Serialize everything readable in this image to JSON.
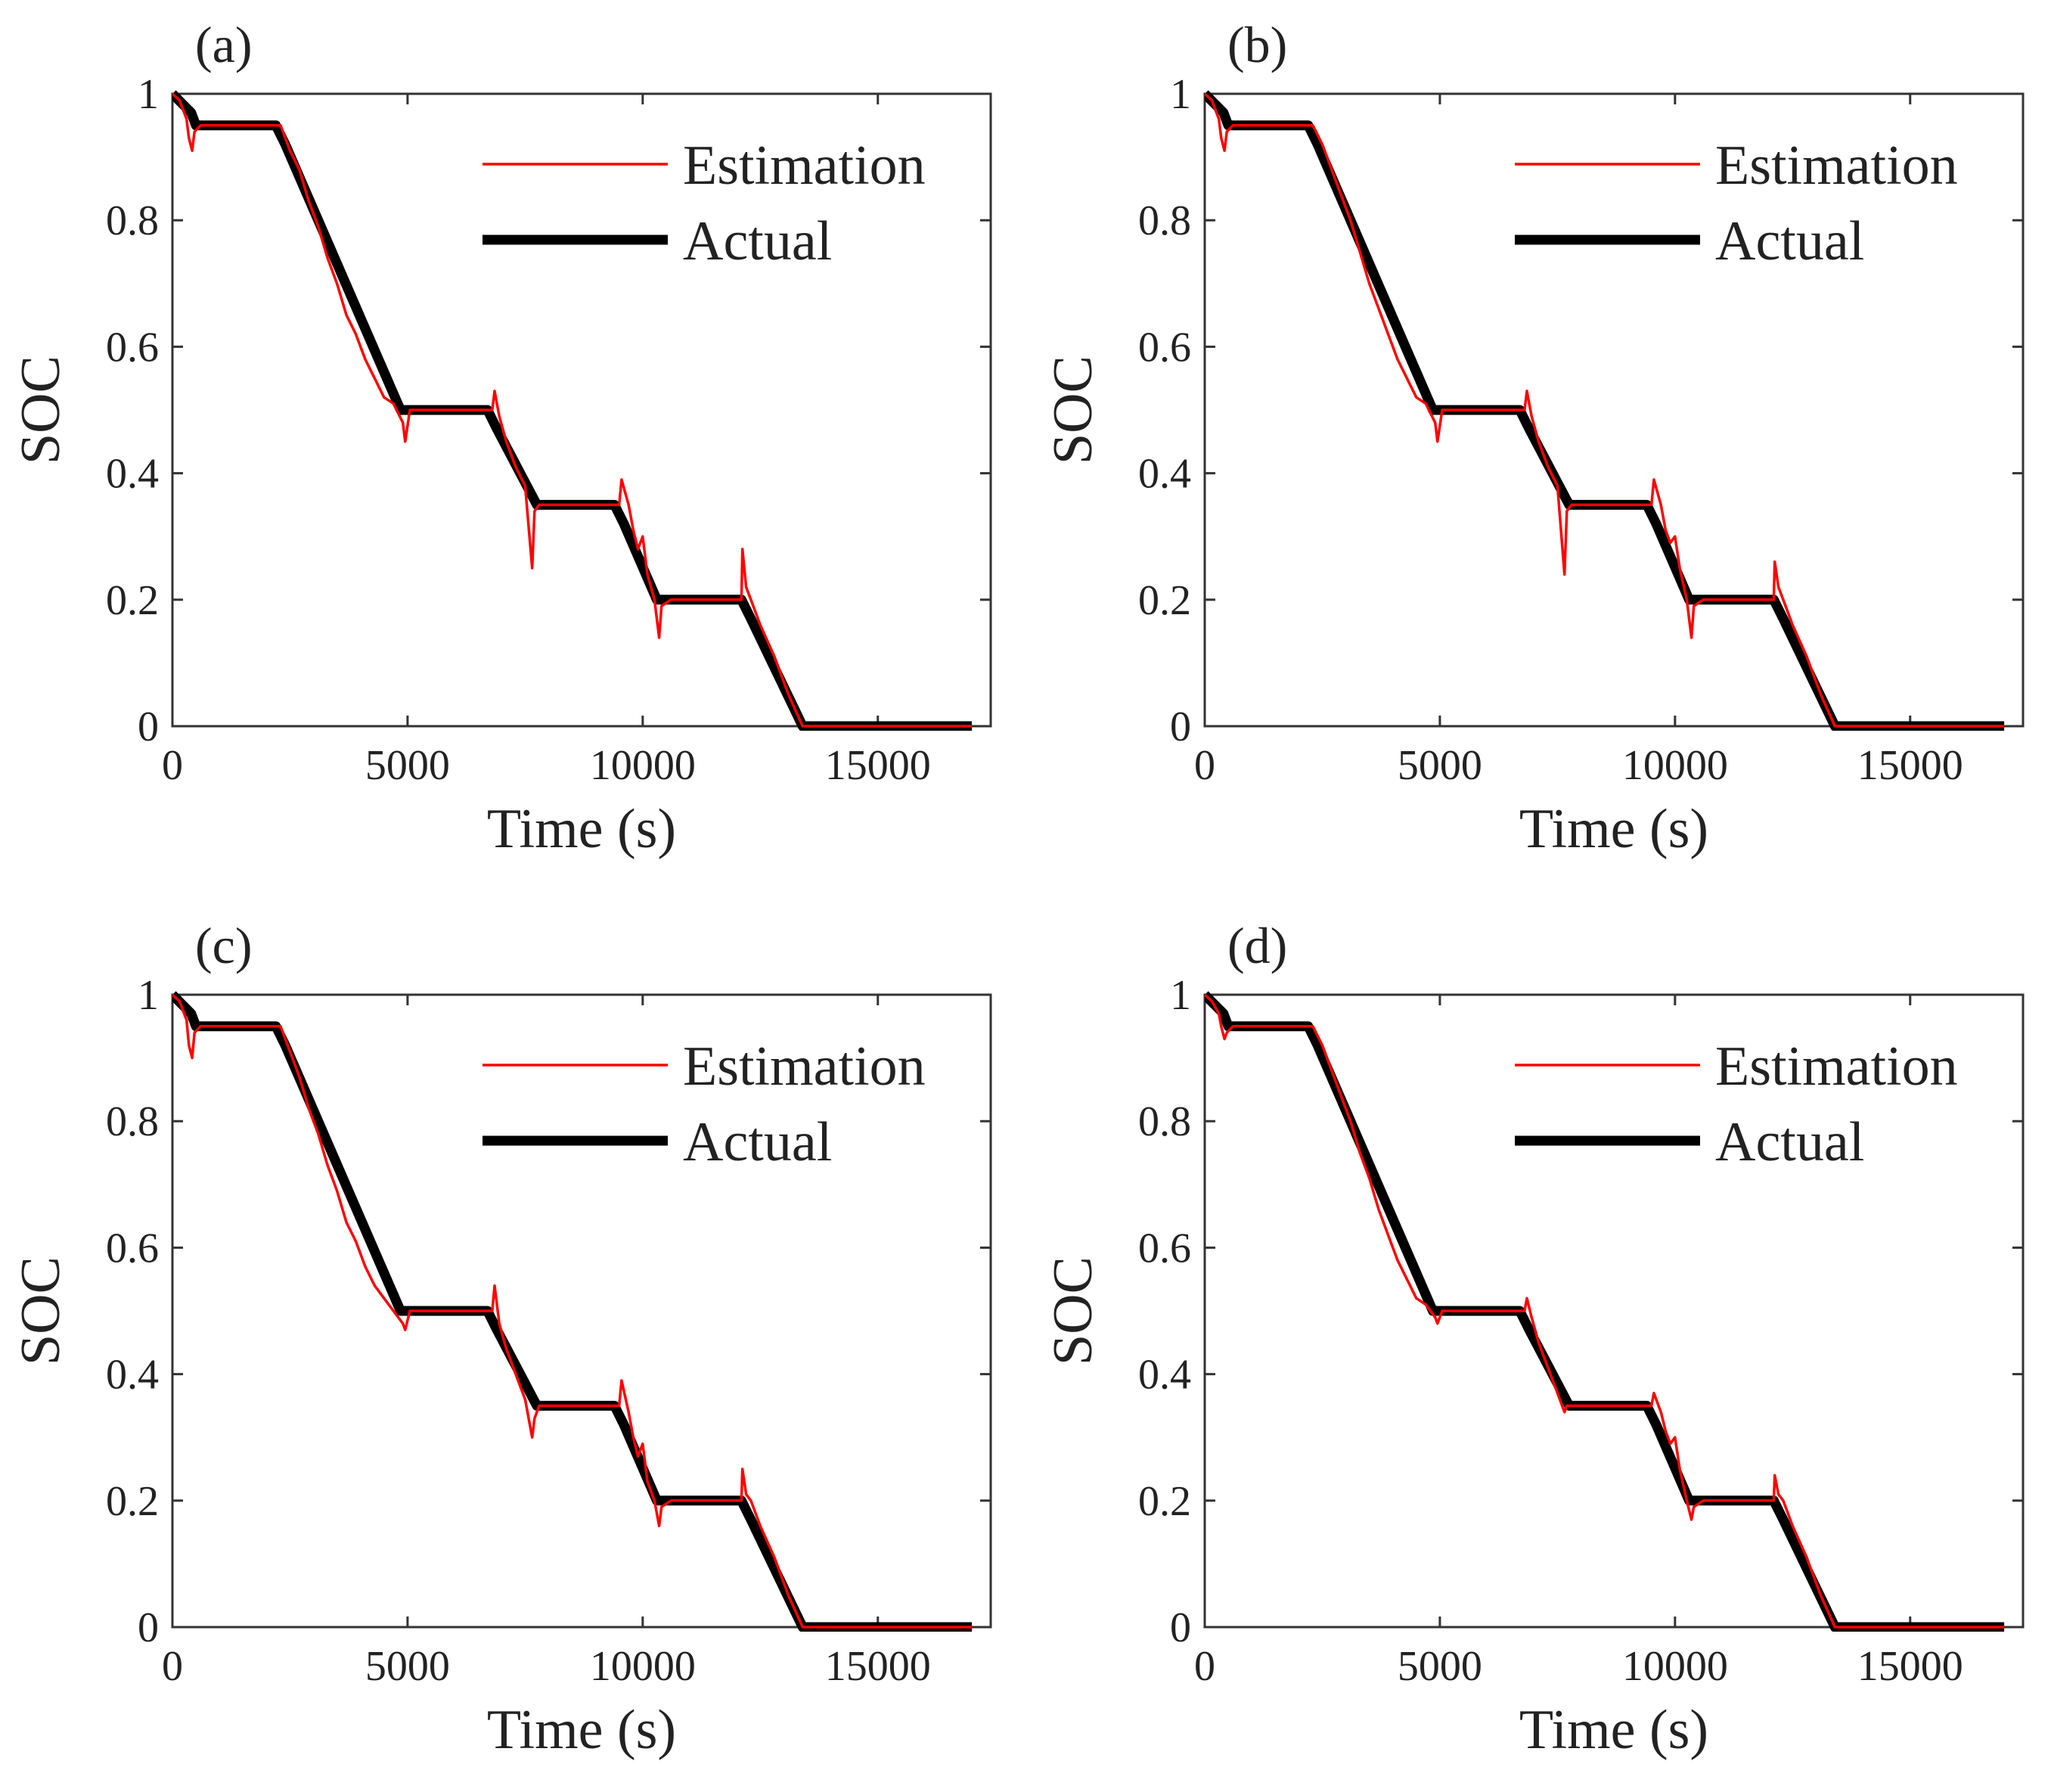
{
  "figure": {
    "panel_order": [
      "a",
      "b",
      "c",
      "d"
    ]
  },
  "colors": {
    "estimation": "#ff0000",
    "actual": "#000000",
    "axes": "#333333"
  },
  "chart_data": [
    {
      "type": "line",
      "panel_label": "(a)",
      "xlabel": "Time (s)",
      "ylabel": "SOC",
      "xlim": [
        0,
        17400
      ],
      "ylim": [
        0,
        1
      ],
      "xticks": [
        0,
        5000,
        10000,
        15000
      ],
      "yticks": [
        0,
        0.2,
        0.4,
        0.6,
        0.8,
        1
      ],
      "xtick_labels": [
        "0",
        "5000",
        "10000",
        "15000"
      ],
      "ytick_labels": [
        "0",
        "0.2",
        "0.4",
        "0.6",
        "0.8",
        "1"
      ],
      "legend_position": "top-right",
      "series": [
        {
          "name": "Estimation",
          "role": "estimation",
          "color": "#ff0000",
          "x": [
            0,
            150,
            300,
            350,
            420,
            470,
            600,
            2300,
            2500,
            2700,
            2900,
            3100,
            3300,
            3500,
            3700,
            3900,
            4100,
            4300,
            4500,
            4700,
            4900,
            4950,
            5050,
            6800,
            6850,
            6950,
            7100,
            7300,
            7500,
            7650,
            7700,
            7800,
            9500,
            9550,
            9700,
            9800,
            9900,
            10000,
            10100,
            10250,
            10350,
            10400,
            10600,
            12100,
            12120,
            12200,
            12300,
            12500,
            12800,
            13100,
            13400,
            17000
          ],
          "y": [
            1.0,
            0.99,
            0.96,
            0.93,
            0.91,
            0.94,
            0.95,
            0.95,
            0.91,
            0.88,
            0.83,
            0.79,
            0.74,
            0.7,
            0.65,
            0.62,
            0.58,
            0.55,
            0.52,
            0.51,
            0.48,
            0.45,
            0.5,
            0.5,
            0.53,
            0.49,
            0.45,
            0.41,
            0.38,
            0.25,
            0.34,
            0.35,
            0.35,
            0.39,
            0.35,
            0.31,
            0.28,
            0.3,
            0.24,
            0.2,
            0.14,
            0.19,
            0.2,
            0.2,
            0.28,
            0.22,
            0.2,
            0.16,
            0.11,
            0.05,
            0.0,
            0.0
          ]
        },
        {
          "name": "Actual",
          "role": "actual",
          "color": "#000000",
          "x": [
            0,
            400,
            500,
            2200,
            2400,
            4850,
            6700,
            6900,
            7750,
            9400,
            9600,
            10300,
            12100,
            12300,
            13400,
            17000
          ],
          "y": [
            1.0,
            0.97,
            0.95,
            0.95,
            0.92,
            0.5,
            0.5,
            0.47,
            0.35,
            0.35,
            0.32,
            0.2,
            0.2,
            0.17,
            0.0,
            0.0
          ]
        }
      ]
    },
    {
      "type": "line",
      "panel_label": "(b)",
      "xlabel": "Time (s)",
      "ylabel": "SOC",
      "xlim": [
        0,
        17400
      ],
      "ylim": [
        0,
        1
      ],
      "xticks": [
        0,
        5000,
        10000,
        15000
      ],
      "yticks": [
        0,
        0.2,
        0.4,
        0.6,
        0.8,
        1
      ],
      "xtick_labels": [
        "0",
        "5000",
        "10000",
        "15000"
      ],
      "ytick_labels": [
        "0",
        "0.2",
        "0.4",
        "0.6",
        "0.8",
        "1"
      ],
      "legend_position": "top-right",
      "series": [
        {
          "name": "Estimation",
          "role": "estimation",
          "color": "#ff0000",
          "x": [
            0,
            150,
            300,
            350,
            420,
            470,
            600,
            2300,
            2500,
            2700,
            2900,
            3100,
            3300,
            3500,
            3700,
            3900,
            4100,
            4300,
            4500,
            4700,
            4900,
            4950,
            5050,
            6800,
            6850,
            6950,
            7100,
            7300,
            7500,
            7650,
            7700,
            7800,
            9500,
            9550,
            9700,
            9800,
            9900,
            10000,
            10100,
            10250,
            10350,
            10400,
            10600,
            12100,
            12120,
            12200,
            12300,
            12500,
            12800,
            13100,
            13400,
            17000
          ],
          "y": [
            1.0,
            0.99,
            0.96,
            0.93,
            0.91,
            0.94,
            0.95,
            0.95,
            0.92,
            0.88,
            0.84,
            0.8,
            0.75,
            0.7,
            0.66,
            0.62,
            0.58,
            0.55,
            0.52,
            0.51,
            0.48,
            0.45,
            0.5,
            0.5,
            0.53,
            0.49,
            0.45,
            0.41,
            0.38,
            0.24,
            0.34,
            0.35,
            0.35,
            0.39,
            0.35,
            0.31,
            0.29,
            0.3,
            0.25,
            0.2,
            0.14,
            0.19,
            0.2,
            0.2,
            0.26,
            0.22,
            0.2,
            0.16,
            0.11,
            0.05,
            0.0,
            0.0
          ]
        },
        {
          "name": "Actual",
          "role": "actual",
          "color": "#000000",
          "x": [
            0,
            400,
            500,
            2200,
            2400,
            4850,
            6700,
            6900,
            7750,
            9400,
            9600,
            10300,
            12100,
            12300,
            13400,
            17000
          ],
          "y": [
            1.0,
            0.97,
            0.95,
            0.95,
            0.92,
            0.5,
            0.5,
            0.47,
            0.35,
            0.35,
            0.32,
            0.2,
            0.2,
            0.17,
            0.0,
            0.0
          ]
        }
      ]
    },
    {
      "type": "line",
      "panel_label": "(c)",
      "xlabel": "Time (s)",
      "ylabel": "SOC",
      "xlim": [
        0,
        17400
      ],
      "ylim": [
        0,
        1
      ],
      "xticks": [
        0,
        5000,
        10000,
        15000
      ],
      "yticks": [
        0,
        0.2,
        0.4,
        0.6,
        0.8,
        1
      ],
      "xtick_labels": [
        "0",
        "5000",
        "10000",
        "15000"
      ],
      "ytick_labels": [
        "0",
        "0.2",
        "0.4",
        "0.6",
        "0.8",
        "1"
      ],
      "legend_position": "top-right",
      "series": [
        {
          "name": "Estimation",
          "role": "estimation",
          "color": "#ff0000",
          "x": [
            0,
            150,
            300,
            350,
            420,
            470,
            600,
            2300,
            2500,
            2700,
            2900,
            3100,
            3300,
            3500,
            3700,
            3900,
            4100,
            4300,
            4500,
            4700,
            4900,
            4950,
            5050,
            6800,
            6850,
            6950,
            7100,
            7300,
            7500,
            7650,
            7700,
            7800,
            9500,
            9550,
            9700,
            9800,
            9900,
            10000,
            10100,
            10250,
            10350,
            10400,
            10600,
            12100,
            12120,
            12200,
            12300,
            12500,
            12800,
            13100,
            13400,
            17000
          ],
          "y": [
            1.0,
            0.99,
            0.96,
            0.92,
            0.9,
            0.94,
            0.95,
            0.95,
            0.91,
            0.87,
            0.82,
            0.78,
            0.73,
            0.69,
            0.64,
            0.61,
            0.57,
            0.54,
            0.52,
            0.5,
            0.48,
            0.47,
            0.5,
            0.5,
            0.54,
            0.48,
            0.44,
            0.4,
            0.36,
            0.3,
            0.33,
            0.35,
            0.35,
            0.39,
            0.34,
            0.3,
            0.27,
            0.29,
            0.23,
            0.2,
            0.16,
            0.19,
            0.2,
            0.2,
            0.25,
            0.21,
            0.2,
            0.16,
            0.11,
            0.05,
            0.0,
            0.0
          ]
        },
        {
          "name": "Actual",
          "role": "actual",
          "color": "#000000",
          "x": [
            0,
            400,
            500,
            2200,
            2400,
            4850,
            6700,
            6900,
            7750,
            9400,
            9600,
            10300,
            12100,
            12300,
            13400,
            17000
          ],
          "y": [
            1.0,
            0.97,
            0.95,
            0.95,
            0.92,
            0.5,
            0.5,
            0.47,
            0.35,
            0.35,
            0.32,
            0.2,
            0.2,
            0.17,
            0.0,
            0.0
          ]
        }
      ]
    },
    {
      "type": "line",
      "panel_label": "(d)",
      "xlabel": "Time (s)",
      "ylabel": "SOC",
      "xlim": [
        0,
        17400
      ],
      "ylim": [
        0,
        1
      ],
      "xticks": [
        0,
        5000,
        10000,
        15000
      ],
      "yticks": [
        0,
        0.2,
        0.4,
        0.6,
        0.8,
        1
      ],
      "xtick_labels": [
        "0",
        "5000",
        "10000",
        "15000"
      ],
      "ytick_labels": [
        "0",
        "0.2",
        "0.4",
        "0.6",
        "0.8",
        "1"
      ],
      "legend_position": "top-right",
      "series": [
        {
          "name": "Estimation",
          "role": "estimation",
          "color": "#ff0000",
          "x": [
            0,
            150,
            300,
            350,
            420,
            470,
            600,
            2300,
            2500,
            2700,
            2900,
            3100,
            3300,
            3500,
            3700,
            3900,
            4100,
            4300,
            4500,
            4700,
            4900,
            4950,
            5050,
            6800,
            6850,
            6950,
            7100,
            7300,
            7500,
            7650,
            7700,
            7800,
            9500,
            9550,
            9700,
            9800,
            9900,
            10000,
            10100,
            10250,
            10350,
            10400,
            10600,
            12100,
            12120,
            12200,
            12300,
            12500,
            12800,
            13100,
            13400,
            17000
          ],
          "y": [
            1.0,
            0.99,
            0.97,
            0.95,
            0.93,
            0.94,
            0.95,
            0.95,
            0.92,
            0.88,
            0.84,
            0.8,
            0.75,
            0.71,
            0.66,
            0.62,
            0.58,
            0.55,
            0.52,
            0.51,
            0.49,
            0.48,
            0.5,
            0.5,
            0.52,
            0.49,
            0.45,
            0.41,
            0.37,
            0.34,
            0.35,
            0.35,
            0.35,
            0.37,
            0.34,
            0.31,
            0.29,
            0.3,
            0.25,
            0.2,
            0.17,
            0.19,
            0.2,
            0.2,
            0.24,
            0.21,
            0.2,
            0.16,
            0.11,
            0.05,
            0.0,
            0.0
          ]
        },
        {
          "name": "Actual",
          "role": "actual",
          "color": "#000000",
          "x": [
            0,
            400,
            500,
            2200,
            2400,
            4850,
            6700,
            6900,
            7750,
            9400,
            9600,
            10300,
            12100,
            12300,
            13400,
            17000
          ],
          "y": [
            1.0,
            0.97,
            0.95,
            0.95,
            0.92,
            0.5,
            0.5,
            0.47,
            0.35,
            0.35,
            0.32,
            0.2,
            0.2,
            0.17,
            0.0,
            0.0
          ]
        }
      ]
    }
  ]
}
